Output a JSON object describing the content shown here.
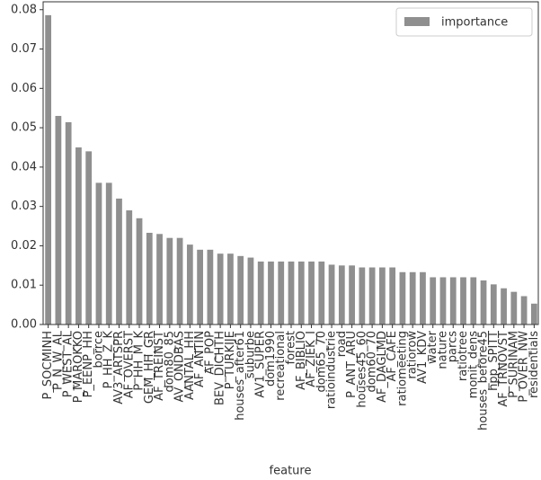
{
  "chart_data": {
    "type": "bar",
    "x_label": "feature",
    "categories": [
      "P_SOCMINH",
      "P_N_W_AL",
      "P_WEST_AL",
      "P_MAROKKO",
      "P_EENP_HH",
      "borrce",
      "P_HH_Z_K",
      "AV3_ARTSPR",
      "AF_OVERST",
      "P_HH_M_K",
      "GEM_HH_GR",
      "AF_TREINST",
      "dom80_85",
      "AV_ONDBAS",
      "AANTAL_HH",
      "AF_ANTIN",
      "AF_POP",
      "BEV_DICHTH",
      "P_TURKIJE",
      "houses_after61",
      "suburbe",
      "AV1_SUPER",
      "dom1990",
      "recreational",
      "forest",
      "AF_BIBLIO",
      "AF_ZIEK_I",
      "dom65_70",
      "ratioindustrie",
      "road",
      "P_ANT_ARU",
      "houses45_60",
      "dom60_70",
      "AF_DAGLMD",
      "AF_CAFE",
      "ratiomeeting",
      "ratiorow",
      "AV1_KDV",
      "water",
      "nature",
      "parcs",
      "ratiotree",
      "monit_dens",
      "houses_before45",
      "hpp_SPITT",
      "AF_TRNOVST",
      "P_SURINAM",
      "P_OVER_NW",
      "residentials"
    ],
    "series": [
      {
        "name": "importance",
        "color": "#8f8f8f",
        "values": [
          0.0786,
          0.053,
          0.0514,
          0.045,
          0.044,
          0.036,
          0.036,
          0.032,
          0.029,
          0.027,
          0.0233,
          0.023,
          0.022,
          0.022,
          0.0203,
          0.019,
          0.019,
          0.018,
          0.018,
          0.0174,
          0.017,
          0.016,
          0.016,
          0.016,
          0.016,
          0.016,
          0.016,
          0.016,
          0.0152,
          0.015,
          0.015,
          0.0145,
          0.0145,
          0.0145,
          0.0145,
          0.0133,
          0.0133,
          0.0133,
          0.012,
          0.012,
          0.012,
          0.012,
          0.012,
          0.0112,
          0.0102,
          0.0092,
          0.0083,
          0.0072,
          0.0053
        ]
      }
    ],
    "ylim": [
      0,
      0.082
    ],
    "yticks": [
      {
        "value": 0,
        "label": "0.00"
      },
      {
        "value": 0.01,
        "label": "0.01"
      },
      {
        "value": 0.02,
        "label": "0.02"
      },
      {
        "value": 0.03,
        "label": "0.03"
      },
      {
        "value": 0.04,
        "label": "0.04"
      },
      {
        "value": 0.05,
        "label": "0.05"
      },
      {
        "value": 0.06,
        "label": "0.06"
      },
      {
        "value": 0.07,
        "label": "0.07"
      },
      {
        "value": 0.08,
        "label": "0.08"
      }
    ],
    "legend": "upper right"
  }
}
